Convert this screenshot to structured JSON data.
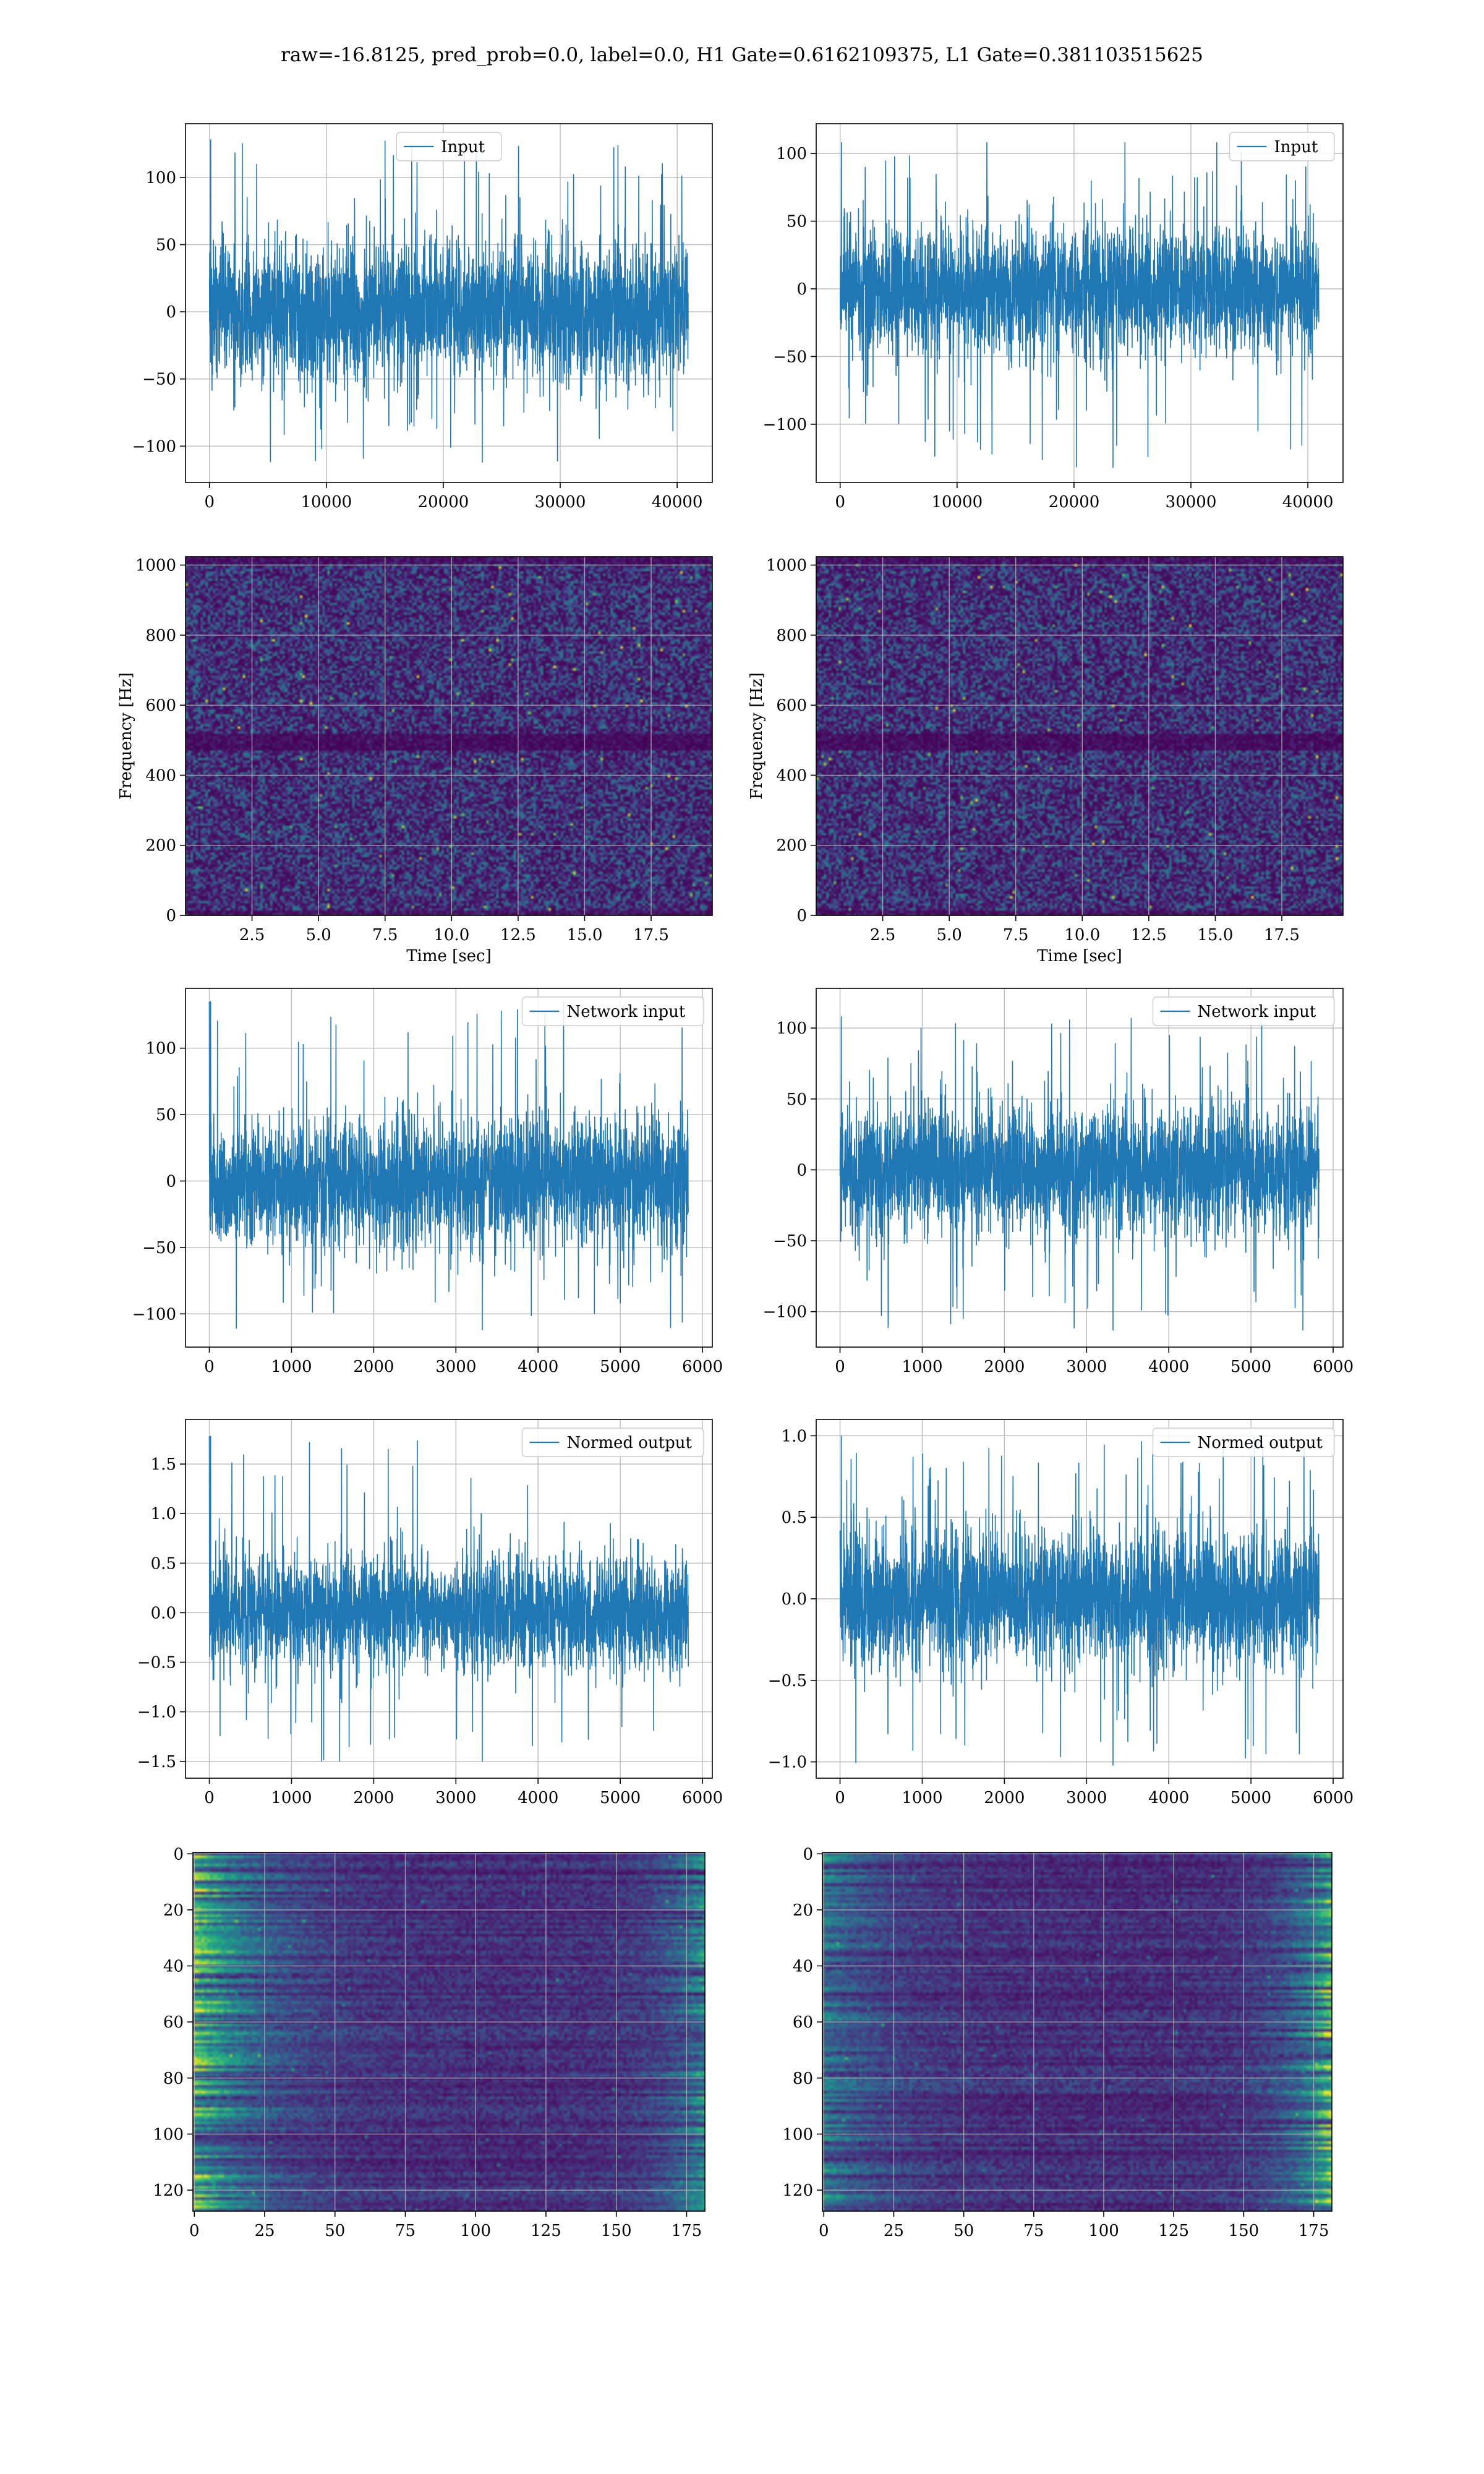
{
  "suptitle": "raw=-16.8125, pred_prob=0.0, label=0.0, H1 Gate=0.6162109375, L1 Gate=0.381103515625",
  "colors": {
    "line": "#1f77b4",
    "grid": "#b0b0b0",
    "axes": "#000000",
    "viridis_dark": "#440154",
    "viridis_light": "#fde725"
  },
  "chart_data": [
    {
      "id": "input-h1",
      "type": "line",
      "panel": [
        0,
        0
      ],
      "series": [
        {
          "name": "Input"
        }
      ],
      "signal": {
        "length": 40960,
        "amplitude": 33,
        "spike_max": 128,
        "spike_min": -112
      },
      "xlim": [
        -2048,
        43008
      ],
      "ylim": [
        -127,
        140
      ],
      "xticks": [
        0,
        10000,
        20000,
        30000,
        40000
      ],
      "xtick_labels": [
        "0",
        "10000",
        "20000",
        "30000",
        "40000"
      ],
      "yticks": [
        -100,
        -50,
        0,
        50,
        100
      ],
      "ytick_labels": [
        "−100",
        "−50",
        "0",
        "50",
        "100"
      ],
      "legend": "upper center",
      "grid": true
    },
    {
      "id": "input-l1",
      "type": "line",
      "panel": [
        0,
        1
      ],
      "series": [
        {
          "name": "Input"
        }
      ],
      "signal": {
        "length": 40960,
        "amplitude": 30,
        "spike_max": 108,
        "spike_min": -132
      },
      "xlim": [
        -2048,
        43008
      ],
      "ylim": [
        -143,
        122
      ],
      "xticks": [
        0,
        10000,
        20000,
        30000,
        40000
      ],
      "xtick_labels": [
        "0",
        "10000",
        "20000",
        "30000",
        "40000"
      ],
      "yticks": [
        -100,
        -50,
        0,
        50,
        100
      ],
      "ytick_labels": [
        "−100",
        "−50",
        "0",
        "50",
        "100"
      ],
      "legend": "upper right",
      "grid": true
    },
    {
      "id": "spectrogram-h1",
      "type": "heatmap",
      "panel": [
        1,
        0
      ],
      "xlim": [
        0,
        19.8
      ],
      "ylim": [
        0,
        1024
      ],
      "xticks": [
        2.5,
        5.0,
        7.5,
        10.0,
        12.5,
        15.0,
        17.5
      ],
      "xtick_labels": [
        "2.5",
        "5.0",
        "7.5",
        "10.0",
        "12.5",
        "15.0",
        "17.5"
      ],
      "yticks": [
        0,
        200,
        400,
        600,
        800,
        1000
      ],
      "ytick_labels": [
        "0",
        "200",
        "400",
        "600",
        "800",
        "1000"
      ],
      "xlabel": "Time [sec]",
      "ylabel": "Frequency [Hz]",
      "dark_band_hz": [
        470,
        520
      ],
      "colormap": "viridis",
      "grid": true
    },
    {
      "id": "spectrogram-l1",
      "type": "heatmap",
      "panel": [
        1,
        1
      ],
      "xlim": [
        0,
        19.8
      ],
      "ylim": [
        0,
        1024
      ],
      "xticks": [
        2.5,
        5.0,
        7.5,
        10.0,
        12.5,
        15.0,
        17.5
      ],
      "xtick_labels": [
        "2.5",
        "5.0",
        "7.5",
        "10.0",
        "12.5",
        "15.0",
        "17.5"
      ],
      "yticks": [
        0,
        200,
        400,
        600,
        800,
        1000
      ],
      "ytick_labels": [
        "0",
        "200",
        "400",
        "600",
        "800",
        "1000"
      ],
      "xlabel": "Time [sec]",
      "ylabel": "Frequency [Hz]",
      "dark_band_hz": [
        470,
        520
      ],
      "colormap": "viridis",
      "grid": true
    },
    {
      "id": "network-input-h1",
      "type": "line",
      "panel": [
        2,
        0
      ],
      "series": [
        {
          "name": "Network input"
        }
      ],
      "signal": {
        "length": 5830,
        "amplitude": 30,
        "spike_max": 135,
        "spike_min": -112,
        "first_value": 135
      },
      "xlim": [
        -290,
        6120
      ],
      "ylim": [
        -125,
        145
      ],
      "xticks": [
        0,
        1000,
        2000,
        3000,
        4000,
        5000,
        6000
      ],
      "xtick_labels": [
        "0",
        "1000",
        "2000",
        "3000",
        "4000",
        "5000",
        "6000"
      ],
      "yticks": [
        -100,
        -50,
        0,
        50,
        100
      ],
      "ytick_labels": [
        "−100",
        "−50",
        "0",
        "50",
        "100"
      ],
      "legend": "upper right",
      "grid": true
    },
    {
      "id": "network-input-l1",
      "type": "line",
      "panel": [
        2,
        1
      ],
      "series": [
        {
          "name": "Network input"
        }
      ],
      "signal": {
        "length": 5830,
        "amplitude": 28,
        "spike_max": 108,
        "spike_min": -113
      },
      "xlim": [
        -290,
        6120
      ],
      "ylim": [
        -125,
        128
      ],
      "xticks": [
        0,
        1000,
        2000,
        3000,
        4000,
        5000,
        6000
      ],
      "xtick_labels": [
        "0",
        "1000",
        "2000",
        "3000",
        "4000",
        "5000",
        "6000"
      ],
      "yticks": [
        -100,
        -50,
        0,
        50,
        100
      ],
      "ytick_labels": [
        "−100",
        "−50",
        "0",
        "50",
        "100"
      ],
      "legend": "upper right",
      "grid": true
    },
    {
      "id": "normed-output-h1",
      "type": "line",
      "panel": [
        3,
        0
      ],
      "series": [
        {
          "name": "Normed output"
        }
      ],
      "signal": {
        "length": 5830,
        "amplitude": 0.36,
        "spike_max": 1.78,
        "spike_min": -1.5,
        "first_value": 1.78
      },
      "xlim": [
        -290,
        6120
      ],
      "ylim": [
        -1.67,
        1.95
      ],
      "xticks": [
        0,
        1000,
        2000,
        3000,
        4000,
        5000,
        6000
      ],
      "xtick_labels": [
        "0",
        "1000",
        "2000",
        "3000",
        "4000",
        "5000",
        "6000"
      ],
      "yticks": [
        -1.5,
        -1.0,
        -0.5,
        0.0,
        0.5,
        1.0,
        1.5
      ],
      "ytick_labels": [
        "−1.5",
        "−1.0",
        "−0.5",
        "0.0",
        "0.5",
        "1.0",
        "1.5"
      ],
      "legend": "upper right",
      "grid": true
    },
    {
      "id": "normed-output-l1",
      "type": "line",
      "panel": [
        3,
        1
      ],
      "series": [
        {
          "name": "Normed output"
        }
      ],
      "signal": {
        "length": 5830,
        "amplitude": 0.26,
        "spike_max": 1.0,
        "spike_min": -1.02
      },
      "xlim": [
        -290,
        6120
      ],
      "ylim": [
        -1.1,
        1.1
      ],
      "xticks": [
        0,
        1000,
        2000,
        3000,
        4000,
        5000,
        6000
      ],
      "xtick_labels": [
        "0",
        "1000",
        "2000",
        "3000",
        "4000",
        "5000",
        "6000"
      ],
      "yticks": [
        -1.0,
        -0.5,
        0.0,
        0.5,
        1.0
      ],
      "ytick_labels": [
        "−1.0",
        "−0.5",
        "0.0",
        "0.5",
        "1.0"
      ],
      "legend": "upper right",
      "grid": true
    },
    {
      "id": "feature-map-h1",
      "type": "heatmap",
      "panel": [
        4,
        0
      ],
      "xlim": [
        -0.5,
        181.5
      ],
      "ylim": [
        127.5,
        -0.5
      ],
      "xticks": [
        0,
        25,
        50,
        75,
        100,
        125,
        150,
        175
      ],
      "xtick_labels": [
        "0",
        "25",
        "50",
        "75",
        "100",
        "125",
        "150",
        "175"
      ],
      "yticks": [
        0,
        20,
        40,
        60,
        80,
        100,
        120
      ],
      "ytick_labels": [
        "0",
        "20",
        "40",
        "60",
        "80",
        "100",
        "120"
      ],
      "bright_edges": "left",
      "colormap": "viridis",
      "grid": true
    },
    {
      "id": "feature-map-l1",
      "type": "heatmap",
      "panel": [
        4,
        1
      ],
      "xlim": [
        -0.5,
        181.5
      ],
      "ylim": [
        127.5,
        -0.5
      ],
      "xticks": [
        0,
        25,
        50,
        75,
        100,
        125,
        150,
        175
      ],
      "xtick_labels": [
        "0",
        "25",
        "50",
        "75",
        "100",
        "125",
        "150",
        "175"
      ],
      "yticks": [
        0,
        20,
        40,
        60,
        80,
        100,
        120
      ],
      "ytick_labels": [
        "0",
        "20",
        "40",
        "60",
        "80",
        "100",
        "120"
      ],
      "bright_edges": "right",
      "colormap": "viridis",
      "grid": true
    }
  ]
}
